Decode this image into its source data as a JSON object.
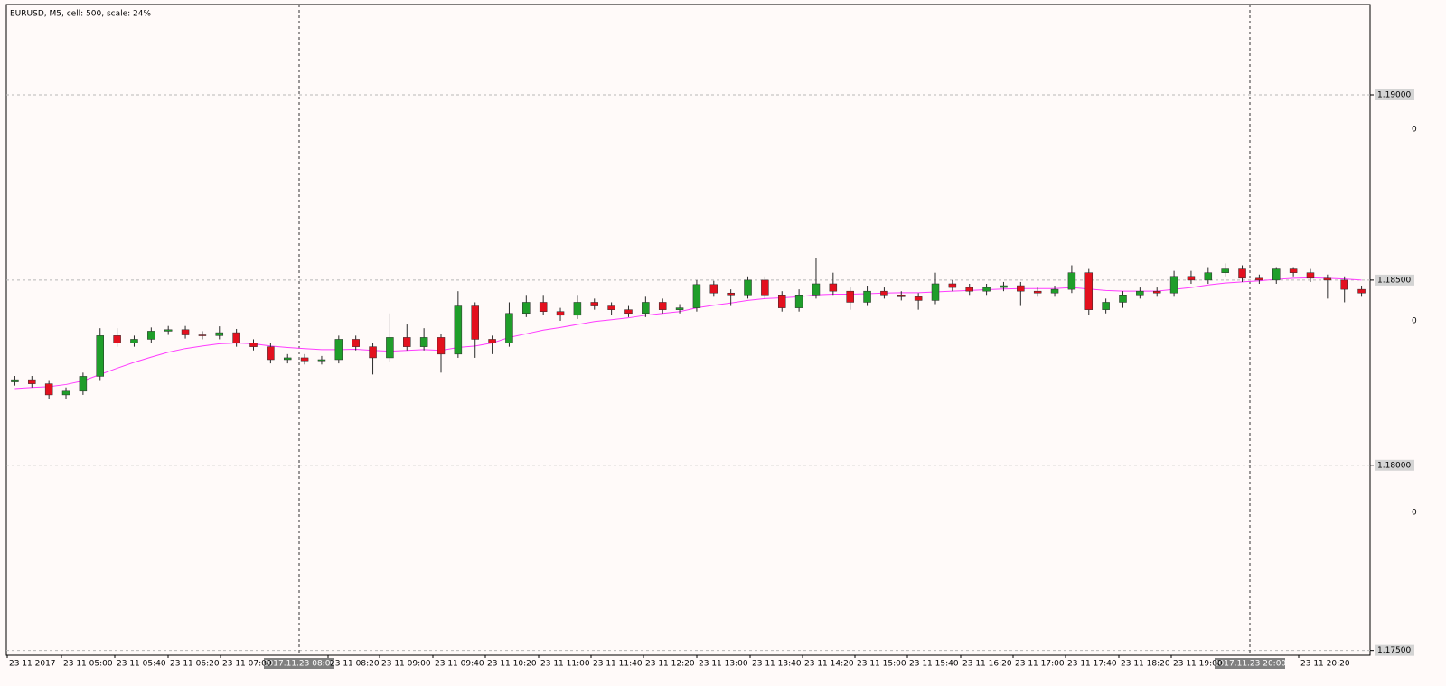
{
  "chart_data": {
    "type": "candlestick",
    "title": "EURUSD, M5, cell: 500, scale: 24%",
    "open": [
      1.18225,
      1.18231,
      1.1822,
      1.1819,
      1.182,
      1.1824,
      1.1835,
      1.1833,
      1.1834,
      1.18362,
      1.18366,
      1.18352,
      1.1835,
      1.18358,
      1.1833,
      1.1832,
      1.18285,
      1.1829,
      1.18282,
      1.18285,
      1.1834,
      1.1832,
      1.1829,
      1.18345,
      1.1832,
      1.18345,
      1.183,
      1.1843,
      1.1834,
      1.1833,
      1.1841,
      1.1844,
      1.18415,
      1.18405,
      1.1844,
      1.1843,
      1.1842,
      1.1841,
      1.1844,
      1.1842,
      1.18425,
      1.18488,
      1.18465,
      1.1846,
      1.185,
      1.1846,
      1.18425,
      1.1846,
      1.1849,
      1.1847,
      1.1844,
      1.1847,
      1.1846,
      1.18455,
      1.18445,
      1.1849,
      1.1848,
      1.1847,
      1.1848,
      1.18485,
      1.1847,
      1.18465,
      1.18475,
      1.1852,
      1.1842,
      1.1844,
      1.1846,
      1.1847,
      1.18465,
      1.1851,
      1.185,
      1.1852,
      1.1853,
      1.18505,
      1.185,
      1.1853,
      1.1852,
      1.18505,
      1.185,
      1.18475
    ],
    "high": [
      1.18241,
      1.18241,
      1.1823,
      1.1821,
      1.1825,
      1.1837,
      1.1837,
      1.1835,
      1.18372,
      1.18376,
      1.18376,
      1.18362,
      1.18375,
      1.18368,
      1.1834,
      1.1833,
      1.183,
      1.183,
      1.18295,
      1.1835,
      1.1835,
      1.1833,
      1.1841,
      1.1838,
      1.1837,
      1.18355,
      1.1847,
      1.1844,
      1.1835,
      1.1844,
      1.1846,
      1.1846,
      1.18425,
      1.1846,
      1.1845,
      1.1844,
      1.1843,
      1.18455,
      1.1845,
      1.18435,
      1.185,
      1.18498,
      1.18475,
      1.1851,
      1.1851,
      1.1847,
      1.18475,
      1.1856,
      1.1852,
      1.1848,
      1.18485,
      1.1848,
      1.1847,
      1.18465,
      1.1852,
      1.185,
      1.1849,
      1.1849,
      1.18495,
      1.18495,
      1.1848,
      1.18485,
      1.1854,
      1.1853,
      1.1845,
      1.1847,
      1.1848,
      1.1848,
      1.18525,
      1.18525,
      1.18535,
      1.18545,
      1.1854,
      1.18515,
      1.18535,
      1.18535,
      1.1853,
      1.18515,
      1.1851,
      1.18485
    ],
    "low": [
      1.18215,
      1.1821,
      1.1818,
      1.1818,
      1.1819,
      1.1823,
      1.1832,
      1.1832,
      1.1833,
      1.18352,
      1.18342,
      1.1834,
      1.1834,
      1.1832,
      1.1831,
      1.18275,
      1.18275,
      1.18272,
      1.18272,
      1.18275,
      1.1831,
      1.18245,
      1.1828,
      1.1831,
      1.1831,
      1.1825,
      1.1829,
      1.1829,
      1.183,
      1.1832,
      1.184,
      1.18405,
      1.1839,
      1.18395,
      1.1842,
      1.18405,
      1.184,
      1.184,
      1.1841,
      1.1841,
      1.18415,
      1.18455,
      1.1843,
      1.1845,
      1.1845,
      1.18415,
      1.18415,
      1.1845,
      1.1846,
      1.1842,
      1.1843,
      1.1845,
      1.18445,
      1.1842,
      1.18435,
      1.1847,
      1.1846,
      1.1846,
      1.1847,
      1.1843,
      1.18455,
      1.18455,
      1.18465,
      1.18405,
      1.1841,
      1.18425,
      1.1845,
      1.18455,
      1.18455,
      1.1849,
      1.1849,
      1.1851,
      1.18495,
      1.1849,
      1.1849,
      1.1851,
      1.18495,
      1.1845,
      1.1844,
      1.18455
    ],
    "close": [
      1.18231,
      1.1822,
      1.1819,
      1.182,
      1.1824,
      1.1835,
      1.1833,
      1.1834,
      1.18362,
      1.18366,
      1.18352,
      1.1835,
      1.18358,
      1.1833,
      1.1832,
      1.18285,
      1.1829,
      1.18282,
      1.18285,
      1.1834,
      1.1832,
      1.1829,
      1.18345,
      1.1832,
      1.18345,
      1.183,
      1.1843,
      1.1834,
      1.1833,
      1.1841,
      1.1844,
      1.18415,
      1.18405,
      1.1844,
      1.1843,
      1.1842,
      1.1841,
      1.1844,
      1.1842,
      1.18425,
      1.18488,
      1.18465,
      1.1846,
      1.185,
      1.1846,
      1.18425,
      1.1846,
      1.1849,
      1.1847,
      1.1844,
      1.1847,
      1.1846,
      1.18455,
      1.18445,
      1.1849,
      1.1848,
      1.1847,
      1.1848,
      1.18485,
      1.1847,
      1.18465,
      1.18475,
      1.1852,
      1.1842,
      1.1844,
      1.1846,
      1.1847,
      1.18465,
      1.1851,
      1.185,
      1.1852,
      1.1853,
      1.18505,
      1.185,
      1.1853,
      1.1852,
      1.18505,
      1.185,
      1.18475,
      1.18465
    ],
    "up_color": "#1f9e2a",
    "down_color": "#e3101e",
    "moving_average": {
      "color": "#ff3cff",
      "values": [
        1.18207,
        1.1821,
        1.18212,
        1.18218,
        1.18228,
        1.18245,
        1.18262,
        1.18278,
        1.18292,
        1.18305,
        1.18315,
        1.18322,
        1.18328,
        1.1833,
        1.18328,
        1.18322,
        1.18318,
        1.18315,
        1.18312,
        1.18312,
        1.18313,
        1.1831,
        1.18308,
        1.1831,
        1.18312,
        1.1831,
        1.18318,
        1.18322,
        1.1833,
        1.18345,
        1.18355,
        1.18365,
        1.18372,
        1.1838,
        1.18388,
        1.18393,
        1.18398,
        1.18405,
        1.1841,
        1.18415,
        1.18425,
        1.18432,
        1.18438,
        1.18445,
        1.1845,
        1.18452,
        1.18455,
        1.1846,
        1.18462,
        1.18462,
        1.18463,
        1.18465,
        1.18466,
        1.18466,
        1.18468,
        1.1847,
        1.18472,
        1.18474,
        1.18476,
        1.18477,
        1.18477,
        1.18477,
        1.1848,
        1.18476,
        1.18472,
        1.1847,
        1.1847,
        1.1847,
        1.18475,
        1.1848,
        1.18487,
        1.18492,
        1.18495,
        1.18498,
        1.18502,
        1.18505,
        1.18506,
        1.18505,
        1.18503,
        1.185
      ]
    },
    "ylim": [
      1.17487,
      1.19244
    ],
    "yticks": [
      {
        "value": 1.175,
        "label": "1.17500"
      },
      {
        "value": 1.18,
        "label": "1.18000"
      },
      {
        "value": 1.185,
        "label": "1.18500"
      },
      {
        "value": 1.19,
        "label": "1.19000"
      }
    ],
    "grid": true,
    "side_labels": [
      "0",
      "0",
      "0"
    ],
    "xtick_labels": [
      "23 11 2017",
      "23 11 05:00",
      "23 11 05:40",
      "23 11 06:20",
      "23 11 07:00",
      "23 11 08:20",
      "23 11 09:00",
      "23 11 09:40",
      "23 11 10:20",
      "23 11 11:00",
      "23 11 11:40",
      "23 11 12:20",
      "23 11 13:00",
      "23 11 13:40",
      "23 11 14:20",
      "23 11 15:00",
      "23 11 15:40",
      "23 11 16:20",
      "23 11 17:00",
      "23 11 17:40",
      "23 11 18:20",
      "23 11 19:00",
      "23 11 20:20"
    ],
    "cursor_labels": [
      "2017.11.23 08:00",
      "2017.11.23 20:00"
    ]
  }
}
